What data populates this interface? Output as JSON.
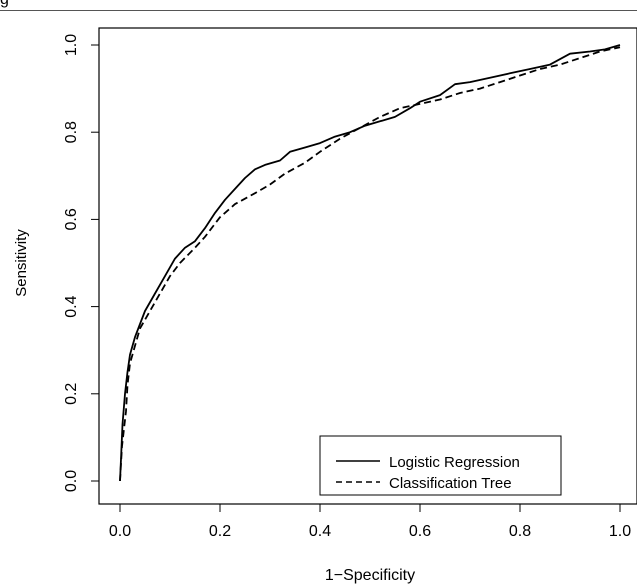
{
  "header": {
    "fragment": "g"
  },
  "chart_data": {
    "type": "line",
    "xlabel": "1−Specificity",
    "ylabel": "Sensitivity",
    "xlim": [
      0,
      1
    ],
    "ylim": [
      0,
      1
    ],
    "xticks": [
      "0.0",
      "0.2",
      "0.4",
      "0.6",
      "0.8",
      "1.0"
    ],
    "yticks": [
      "0.0",
      "0.2",
      "0.4",
      "0.6",
      "0.8",
      "1.0"
    ],
    "grid": false,
    "legend_position": "bottom-right",
    "series": [
      {
        "name": "Logistic Regression",
        "style": "solid",
        "x": [
          0.0,
          0.002,
          0.005,
          0.01,
          0.015,
          0.02,
          0.03,
          0.04,
          0.05,
          0.07,
          0.09,
          0.11,
          0.13,
          0.15,
          0.17,
          0.19,
          0.21,
          0.23,
          0.25,
          0.27,
          0.29,
          0.32,
          0.34,
          0.37,
          0.4,
          0.43,
          0.46,
          0.49,
          0.52,
          0.55,
          0.58,
          0.6,
          0.64,
          0.67,
          0.7,
          0.74,
          0.78,
          0.82,
          0.86,
          0.9,
          0.94,
          0.97,
          1.0
        ],
        "y": [
          0.0,
          0.05,
          0.13,
          0.2,
          0.25,
          0.29,
          0.33,
          0.36,
          0.39,
          0.43,
          0.47,
          0.51,
          0.535,
          0.55,
          0.58,
          0.615,
          0.645,
          0.67,
          0.695,
          0.715,
          0.725,
          0.735,
          0.755,
          0.765,
          0.775,
          0.79,
          0.8,
          0.815,
          0.825,
          0.835,
          0.855,
          0.87,
          0.885,
          0.91,
          0.915,
          0.925,
          0.935,
          0.945,
          0.955,
          0.98,
          0.985,
          0.99,
          1.0
        ]
      },
      {
        "name": "Classification Tree",
        "style": "dashed",
        "x": [
          0.0,
          0.004,
          0.008,
          0.012,
          0.015,
          0.02,
          0.03,
          0.04,
          0.06,
          0.08,
          0.1,
          0.12,
          0.15,
          0.17,
          0.2,
          0.23,
          0.27,
          0.3,
          0.33,
          0.37,
          0.4,
          0.44,
          0.48,
          0.52,
          0.56,
          0.6,
          0.64,
          0.68,
          0.72,
          0.76,
          0.8,
          0.84,
          0.88,
          0.92,
          0.96,
          1.0
        ],
        "y": [
          0.0,
          0.08,
          0.12,
          0.16,
          0.22,
          0.27,
          0.31,
          0.35,
          0.39,
          0.43,
          0.47,
          0.5,
          0.535,
          0.56,
          0.605,
          0.635,
          0.66,
          0.68,
          0.705,
          0.73,
          0.755,
          0.785,
          0.81,
          0.835,
          0.855,
          0.865,
          0.875,
          0.89,
          0.9,
          0.915,
          0.93,
          0.945,
          0.955,
          0.97,
          0.985,
          0.995
        ]
      }
    ]
  }
}
